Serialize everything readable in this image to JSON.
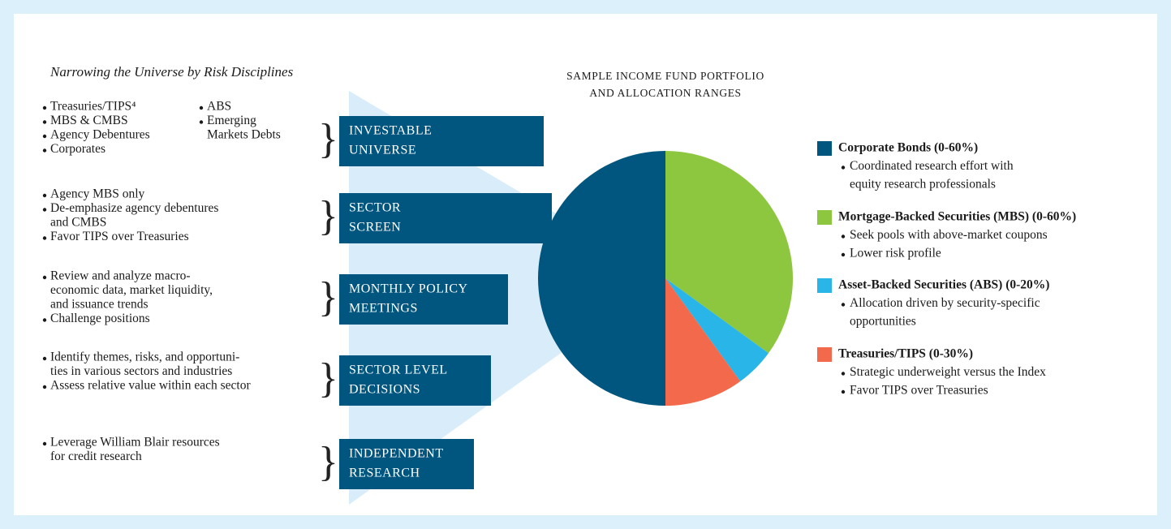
{
  "title": "Narrowing the Universe by Risk Disciplines",
  "steps": [
    {
      "columns": [
        [
          [
            "Treasuries/TIPS⁴"
          ],
          [
            "MBS & CMBS"
          ],
          [
            "Agency Debentures"
          ],
          [
            "Corporates"
          ]
        ],
        [
          [
            "ABS"
          ],
          [
            "Emerging",
            "Markets Debts"
          ]
        ]
      ],
      "label": [
        "INVESTABLE",
        "UNIVERSE"
      ]
    },
    {
      "columns": [
        [
          [
            "Agency MBS only"
          ],
          [
            "De-emphasize agency debentures",
            "and CMBS"
          ],
          [
            "Favor TIPS over Treasuries"
          ]
        ]
      ],
      "label": [
        "SECTOR",
        "SCREEN"
      ]
    },
    {
      "columns": [
        [
          [
            "Review and analyze macro-",
            "economic data, market liquidity,",
            "and issuance trends"
          ],
          [
            "Challenge positions"
          ]
        ]
      ],
      "label": [
        "MONTHLY POLICY",
        "MEETINGS"
      ]
    },
    {
      "columns": [
        [
          [
            "Identify themes, risks, and opportuni-",
            "ties in various sectors and industries"
          ],
          [
            "Assess relative value within each sector"
          ]
        ]
      ],
      "label": [
        "SECTOR LEVEL",
        "DECISIONS"
      ]
    },
    {
      "columns": [
        [
          [
            "Leverage William Blair resources",
            "for credit research"
          ]
        ]
      ],
      "label": [
        "INDEPENDENT",
        "RESEARCH"
      ]
    }
  ],
  "chart_data": {
    "type": "pie",
    "title": [
      "SAMPLE INCOME FUND PORTFOLIO",
      "AND ALLOCATION RANGES"
    ],
    "categories": [
      "Corporate Bonds (0-60%)",
      "Mortgage-Backed Securities (MBS) (0-60%)",
      "Asset-Backed Securities (ABS) (0-20%)",
      "Treasuries/TIPS (0-30%)"
    ],
    "values": [
      50,
      35,
      5,
      10
    ],
    "colors": [
      "#00567f",
      "#8dc63f",
      "#29b5e8",
      "#f26a4b"
    ],
    "notes": [
      [
        [
          "Coordinated research effort with",
          "equity research professionals"
        ]
      ],
      [
        [
          "Seek pools with above-market coupons"
        ],
        [
          "Lower risk profile"
        ]
      ],
      [
        [
          "Allocation driven by security-specific",
          "opportunities"
        ]
      ],
      [
        [
          "Strategic underweight versus the Index"
        ],
        [
          "Favor TIPS over Treasuries"
        ]
      ]
    ]
  }
}
